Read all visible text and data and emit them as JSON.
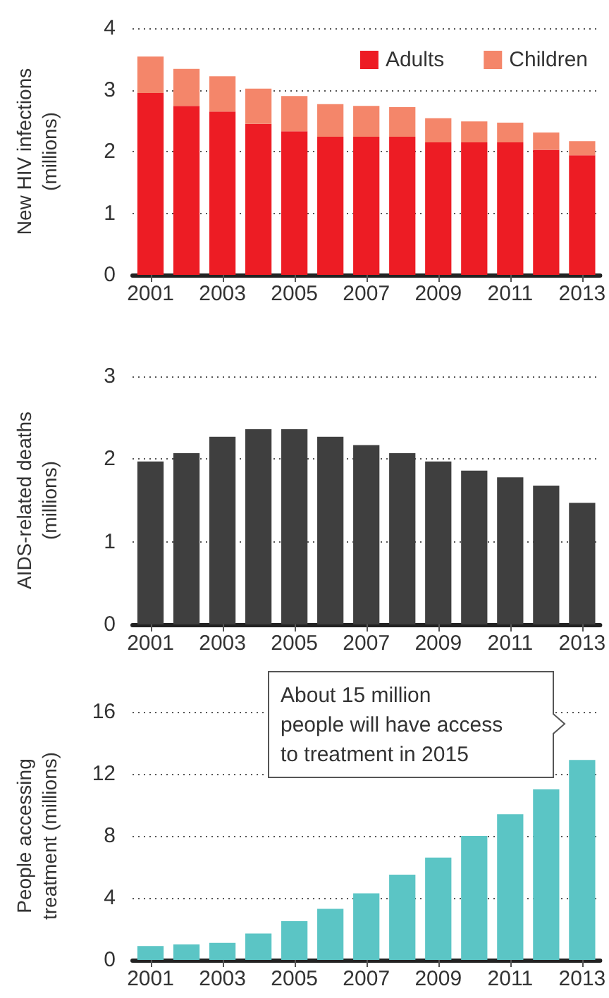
{
  "chart_data": [
    {
      "type": "bar",
      "ylabel": "New HIV infections\n(millions)",
      "categories": [
        "2001",
        null,
        "2003",
        null,
        "2005",
        null,
        "2007",
        null,
        "2009",
        null,
        "2011",
        null,
        "2013"
      ],
      "stacked": true,
      "ylim": [
        0,
        4
      ],
      "yticks": [
        0,
        1,
        2,
        3,
        4
      ],
      "grid": "y",
      "legend": "top right",
      "series": [
        {
          "name": "Adults",
          "color": "#ed1c24",
          "values": [
            2.95,
            2.74,
            2.65,
            2.45,
            2.33,
            2.24,
            2.24,
            2.24,
            2.15,
            2.15,
            2.15,
            2.03,
            1.94
          ]
        },
        {
          "name": "Children",
          "color": "#f4866a",
          "values": [
            0.59,
            0.6,
            0.57,
            0.57,
            0.57,
            0.53,
            0.5,
            0.48,
            0.39,
            0.34,
            0.32,
            0.28,
            0.23
          ]
        }
      ]
    },
    {
      "type": "bar",
      "ylabel": "AIDS-related deaths\n(millions)",
      "categories": [
        "2001",
        null,
        "2003",
        null,
        "2005",
        null,
        "2007",
        null,
        "2009",
        null,
        "2011",
        null,
        "2013"
      ],
      "ylim": [
        0,
        3
      ],
      "yticks": [
        0,
        1,
        2,
        3
      ],
      "grid": "y",
      "series": [
        {
          "color": "#3f3f3f",
          "values": [
            1.97,
            2.07,
            2.27,
            2.36,
            2.36,
            2.27,
            2.17,
            2.07,
            1.97,
            1.86,
            1.78,
            1.68,
            1.47
          ]
        }
      ]
    },
    {
      "type": "bar",
      "ylabel": "People accessing\ntreatment (millions)",
      "categories": [
        "2001",
        null,
        "2003",
        null,
        "2005",
        null,
        "2007",
        null,
        "2009",
        null,
        "2011",
        null,
        "2013"
      ],
      "ylim": [
        0,
        16
      ],
      "yticks": [
        0,
        4,
        8,
        12,
        16
      ],
      "grid": "y",
      "annotations": [
        "About 15 million\npeople will have access\nto treatment in 2015"
      ],
      "series": [
        {
          "color": "#5bc5c5",
          "values": [
            0.9,
            1.0,
            1.1,
            1.7,
            2.5,
            3.3,
            4.3,
            5.5,
            6.6,
            8.0,
            9.4,
            11.0,
            12.9
          ]
        }
      ]
    }
  ]
}
